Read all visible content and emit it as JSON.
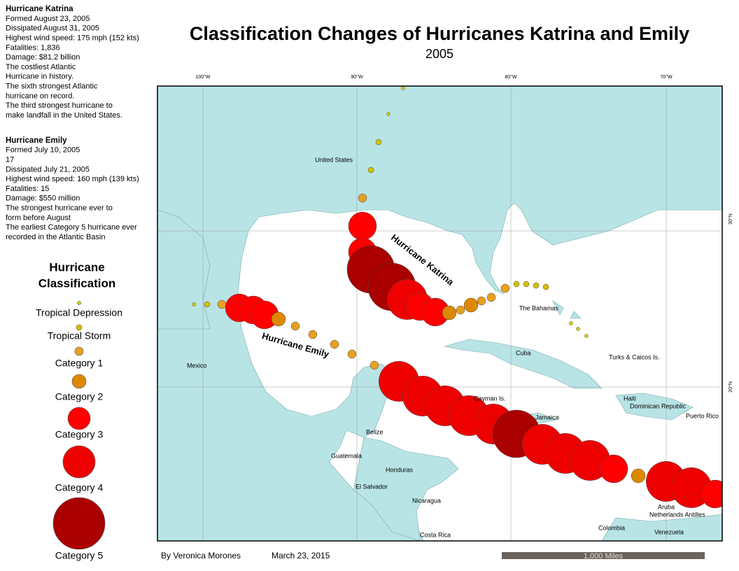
{
  "header": {
    "title": "Classification Changes of Hurricanes Katrina and Emily",
    "subtitle": "2005"
  },
  "info": [
    {
      "name": "Hurricane Katrina",
      "lines": [
        "Formed August 23, 2005",
        "Dissipated August 31, 2005",
        "Highest wind speed: 175 mph (152 kts)",
        "Fatalities: 1,836",
        "Damage: $81.2 billion",
        "The costliest Atlantic",
        "Hurricane in history.",
        "The sixth strongest Atlantic",
        "hurricane on record.",
        "The third strongest hurricane to",
        "make landfall in the United States."
      ]
    },
    {
      "name": "Hurricane Emily",
      "lines": [
        "Formed July 10, 2005",
        "17",
        "Dissipated July 21, 2005",
        "Highest wind speed: 160 mph (139 kts)",
        "Fatalities: 15",
        "Damage: $550 million",
        "The strongest hurricane ever to",
        "form before August",
        "The earliest Category 5 hurricane ever",
        "recorded in the Atlantic Basin"
      ]
    }
  ],
  "legend": {
    "title_lines": [
      "Hurricane",
      "Classification"
    ],
    "items": [
      "Tropical Depression",
      "Tropical Storm",
      "Category 1",
      "Category 2",
      "Category 3",
      "Category 4",
      "Category 5"
    ]
  },
  "map": {
    "graticule": [
      "100°W",
      "90°W",
      "80°W",
      "70°W",
      "30°N",
      "20°N"
    ],
    "places": [
      "United States",
      "Mexico",
      "Cuba",
      "The Bahamas",
      "Turks & Caicos Is.",
      "Haiti",
      "Dominican Republic",
      "Puerto Rico",
      "Cayman Is.",
      "Jamaica",
      "Belize",
      "Guatemala",
      "Honduras",
      "El Salvador",
      "Nicaragua",
      "Costa Rica",
      "Aruba",
      "Netherlands Antilles",
      "Colombia",
      "Venezuela"
    ],
    "tracks": [
      "Hurricane Katrina",
      "Hurricane Emily"
    ]
  },
  "footer": {
    "author": "By Veronica Morones",
    "date": "March 23, 2015",
    "scale": "1,000 Miles"
  }
}
